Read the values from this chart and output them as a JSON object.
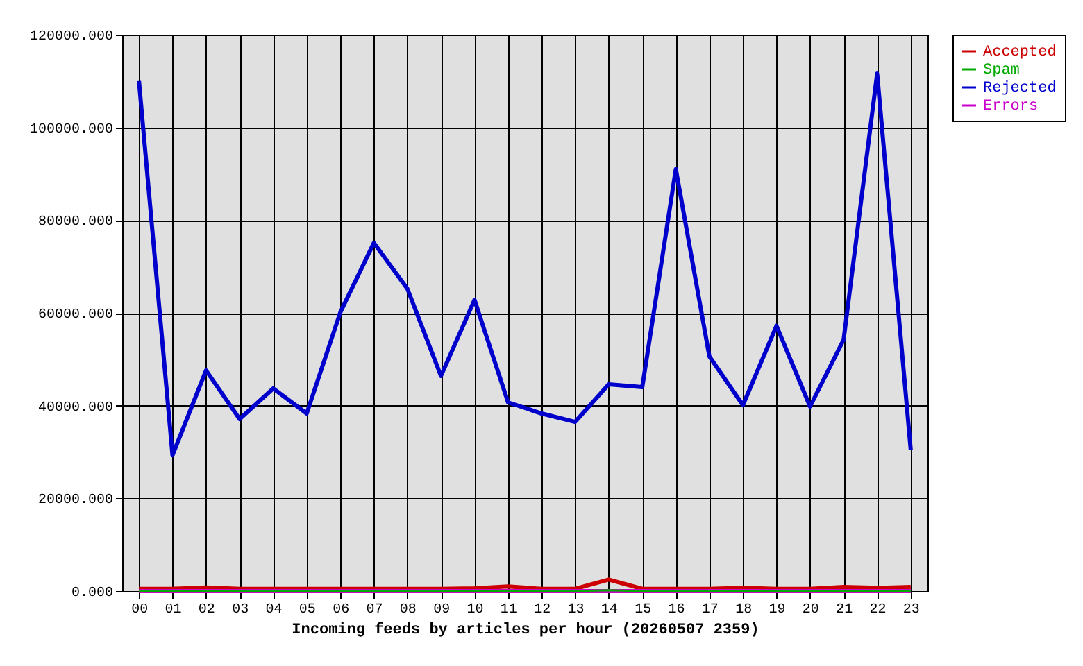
{
  "chart_data": {
    "type": "line",
    "xlabel": "Incoming feeds by articles per hour (20260507 2359)",
    "categories": [
      "00",
      "01",
      "02",
      "03",
      "04",
      "05",
      "06",
      "07",
      "08",
      "09",
      "10",
      "11",
      "12",
      "13",
      "14",
      "15",
      "16",
      "17",
      "18",
      "19",
      "20",
      "21",
      "22",
      "23"
    ],
    "series": [
      {
        "name": "Accepted",
        "color": "#cc0000",
        "values": [
          500,
          500,
          800,
          500,
          500,
          500,
          500,
          500,
          500,
          500,
          600,
          1000,
          500,
          500,
          2500,
          500,
          500,
          500,
          700,
          500,
          500,
          900,
          700,
          900
        ]
      },
      {
        "name": "Errors",
        "color": "#cc00cc",
        "values": [
          0,
          0,
          0,
          0,
          0,
          0,
          0,
          0,
          0,
          0,
          0,
          0,
          0,
          0,
          0,
          0,
          0,
          0,
          0,
          0,
          0,
          0,
          0,
          0
        ]
      },
      {
        "name": "Spam",
        "color": "#00aa00",
        "values": [
          0,
          0,
          0,
          0,
          0,
          0,
          0,
          0,
          0,
          0,
          0,
          0,
          0,
          0,
          200,
          0,
          0,
          0,
          0,
          0,
          0,
          0,
          0,
          0
        ]
      },
      {
        "name": "Rejected",
        "color": "#0000cc",
        "values": [
          110000,
          29300,
          47600,
          37100,
          43700,
          38300,
          60100,
          75100,
          65200,
          46400,
          62800,
          40700,
          38300,
          36500,
          44600,
          44000,
          91000,
          50600,
          40100,
          57200,
          39800,
          54200,
          111600,
          30500
        ]
      }
    ],
    "ylim": [
      0,
      120000
    ],
    "yticks": [
      {
        "value": 0,
        "label": "0.000"
      },
      {
        "value": 20000,
        "label": "20000.000"
      },
      {
        "value": 40000,
        "label": "40000.000"
      },
      {
        "value": 60000,
        "label": "60000.000"
      },
      {
        "value": 80000,
        "label": "80000.000"
      },
      {
        "value": 100000,
        "label": "100000.000"
      },
      {
        "value": 120000,
        "label": "120000.000"
      }
    ],
    "grid": true,
    "legend": "top right",
    "marker": "none",
    "line_style": "solid"
  }
}
